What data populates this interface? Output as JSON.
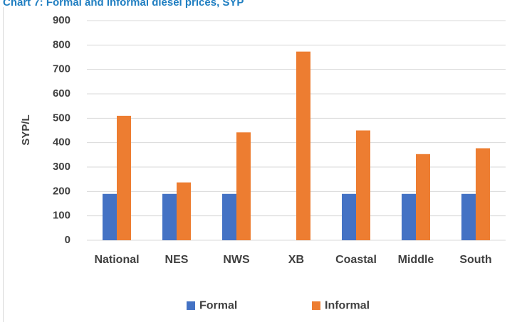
{
  "title": "Chart 7: Formal and informal diesel prices, SYP",
  "chart_data": {
    "type": "bar",
    "title": "Chart 7: Formal and informal diesel prices, SYP",
    "xlabel": "",
    "ylabel": "SYP/L",
    "ylim": [
      0,
      900
    ],
    "yticks": [
      0,
      100,
      200,
      300,
      400,
      500,
      600,
      700,
      800,
      900
    ],
    "grid": true,
    "legend": "bottom",
    "categories": [
      "National",
      "NES",
      "NWS",
      "XB",
      "Coastal",
      "Middle",
      "South"
    ],
    "series": [
      {
        "name": "Formal",
        "color": "#4472c4",
        "values": [
          190,
          190,
          190,
          null,
          190,
          190,
          190
        ]
      },
      {
        "name": "Informal",
        "color": "#ed7d31",
        "values": [
          510,
          237,
          442,
          773,
          450,
          353,
          377
        ]
      }
    ]
  }
}
